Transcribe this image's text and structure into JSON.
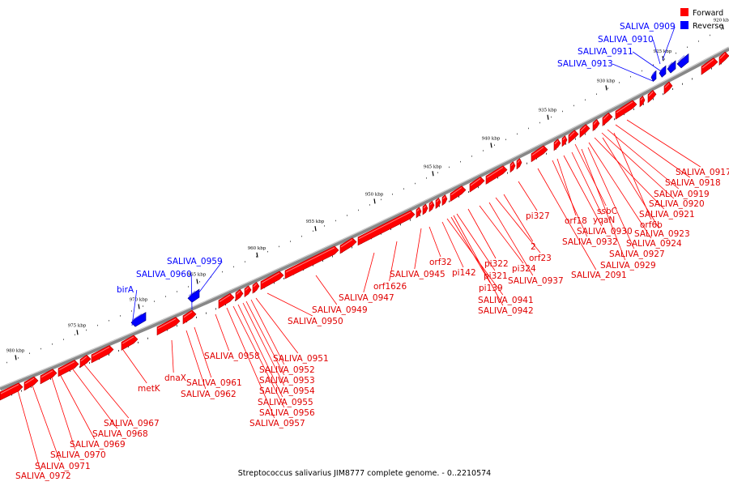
{
  "caption": "Streptococcus salivarius JIM8777 complete genome. - 0..2210574",
  "legend": [
    {
      "label": "Forward",
      "color": "#ff0000"
    },
    {
      "label": "Reverse",
      "color": "#0000ff"
    }
  ],
  "ticks": [
    "920 kbp",
    "925 kbp",
    "930 kbp",
    "935 kbp",
    "940 kbp",
    "945 kbp",
    "950 kbp",
    "955 kbp",
    "960 kbp",
    "965 kbp",
    "970 kbp",
    "975 kbp",
    "980 kbp"
  ],
  "reverse_labels": [
    "SALIVA_0909",
    "SALIVA_0910",
    "SALIVA_0911",
    "SALIVA_0913",
    "SALIVA_0959",
    "SALIVA_0960",
    "birA"
  ],
  "forward_labels": [
    "SALIVA_0917",
    "SALIVA_0918",
    "SALIVA_0919",
    "SALIVA_0920",
    "SALIVA_0921",
    "ssbC",
    "orf6b",
    "SALIVA_0923",
    "SALIVA_0924",
    "yqaN",
    "SALIVA_0930",
    "orf18",
    "SALIVA_0932",
    "SALIVA_0927",
    "SALIVA_0929",
    "pi327",
    "SALIVA_2091",
    "2",
    "orf23",
    "pi322",
    "pi324",
    "SALIVA_0937",
    "pi321",
    "pi139",
    "orf32",
    "pi142",
    "SALIVA_0941",
    "SALIVA_0942",
    "SALIVA_0945",
    "orf1626",
    "SALIVA_0947",
    "SALIVA_0949",
    "SALIVA_0950",
    "SALIVA_0951",
    "SALIVA_0952",
    "SALIVA_0953",
    "SALIVA_0954",
    "SALIVA_0955",
    "SALIVA_0956",
    "SALIVA_0957",
    "SALIVA_0958",
    "SALIVA_0961",
    "SALIVA_0962",
    "dnaX",
    "metK",
    "SALIVA_0967",
    "SALIVA_0968",
    "SALIVA_0969",
    "SALIVA_0970",
    "SALIVA_0971",
    "SALIVA_0972"
  ]
}
